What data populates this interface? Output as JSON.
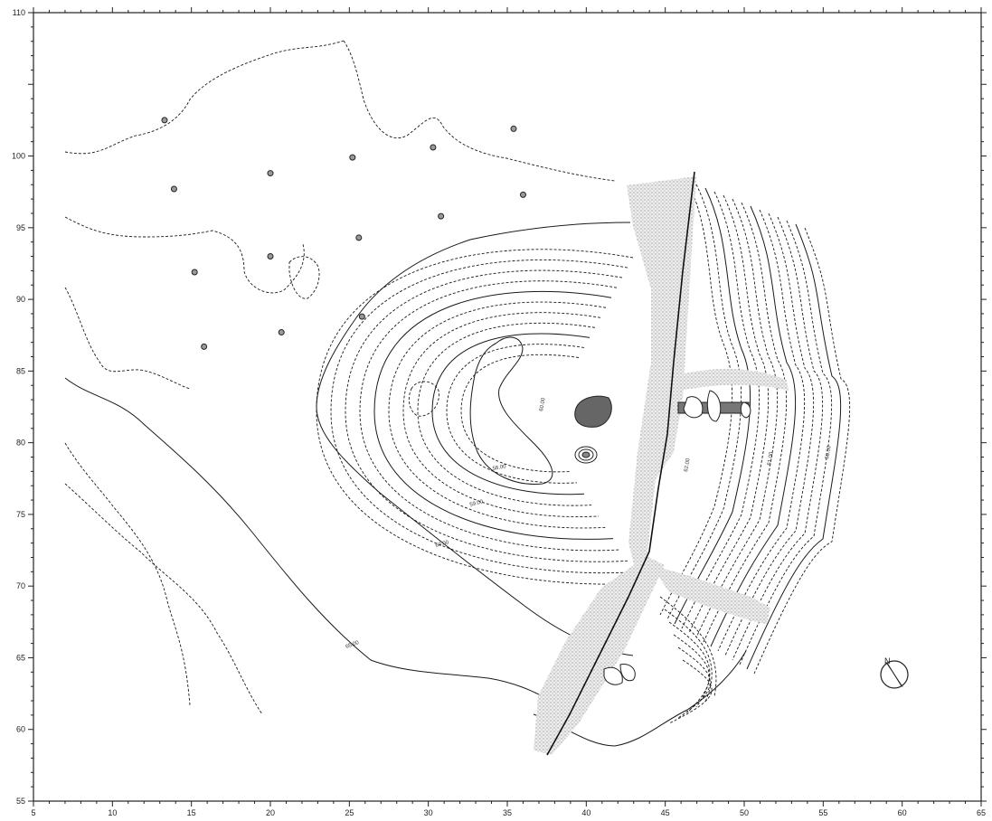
{
  "map": {
    "x_range": [
      5,
      65
    ],
    "y_range": [
      55,
      110
    ],
    "x_ticks": [
      5,
      10,
      15,
      20,
      25,
      30,
      35,
      40,
      45,
      50,
      55,
      60,
      65
    ],
    "y_ticks": [
      55,
      60,
      65,
      70,
      75,
      80,
      85,
      90,
      95,
      100,
      105,
      110
    ],
    "x_tick_labels": [
      "5",
      "10",
      "15",
      "20",
      "25",
      "30",
      "35",
      "40",
      "45",
      "50",
      "55",
      "60",
      "65"
    ],
    "y_tick_labels": [
      "55",
      "60",
      "65",
      "70",
      "75",
      "80",
      "85",
      "90",
      "95",
      "100",
      "",
      "110"
    ],
    "contour_labels": [
      "65.00",
      "60.00",
      "59.00",
      "58.00",
      "60.00",
      "62.00",
      "61.00",
      "58.50"
    ],
    "north_label": "N",
    "colors": {
      "ink": "#1a1a1a",
      "stipple": "#b8b8b8",
      "dark_fill": "#666666"
    }
  }
}
